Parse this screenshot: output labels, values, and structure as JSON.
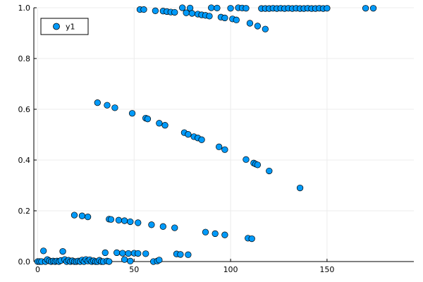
{
  "chart_data": {
    "type": "scatter",
    "title": "",
    "xlabel": "",
    "ylabel": "",
    "xlim": [
      -2,
      195
    ],
    "ylim": [
      0,
      1
    ],
    "xticks": [
      0,
      50,
      100,
      150
    ],
    "yticks": [
      0.0,
      0.2,
      0.4,
      0.6,
      0.8,
      1.0
    ],
    "xtick_labels": [
      "0",
      "50",
      "100",
      "150"
    ],
    "ytick_labels": [
      "0.0",
      "0.2",
      "0.4",
      "0.6",
      "0.8",
      "1.0"
    ],
    "grid": true,
    "legend": {
      "position": "top-left",
      "entries": [
        "y1"
      ]
    },
    "colors": {
      "marker": "#009af9",
      "marker_edge": "#000000",
      "grid": "#ececec",
      "axis": "#000000"
    },
    "series": [
      {
        "name": "y1",
        "points": [
          [
            0,
            0.0
          ],
          [
            1,
            0.0
          ],
          [
            2,
            0.0
          ],
          [
            3,
            0.042
          ],
          [
            4,
            0.0
          ],
          [
            5,
            0.008
          ],
          [
            6,
            0.003
          ],
          [
            7,
            0.0
          ],
          [
            8,
            0.002
          ],
          [
            9,
            0.0
          ],
          [
            10,
            0.002
          ],
          [
            11,
            0.0
          ],
          [
            12,
            0.004
          ],
          [
            13,
            0.04
          ],
          [
            14,
            0.008
          ],
          [
            15,
            0.0
          ],
          [
            16,
            0.005
          ],
          [
            17,
            0.0
          ],
          [
            18,
            0.003
          ],
          [
            19,
            0.0
          ],
          [
            20,
            0.0
          ],
          [
            21,
            0.002
          ],
          [
            22,
            0.0
          ],
          [
            23,
            0.006
          ],
          [
            24,
            0.0
          ],
          [
            25,
            0.008
          ],
          [
            26,
            0.002
          ],
          [
            27,
            0.007
          ],
          [
            28,
            0.0
          ],
          [
            29,
            0.003
          ],
          [
            30,
            0.0
          ],
          [
            31,
            0.0
          ],
          [
            32,
            0.005
          ],
          [
            33,
            0.0
          ],
          [
            34,
            0.0
          ],
          [
            35,
            0.035
          ],
          [
            36,
            0.002
          ],
          [
            37,
            0.0
          ],
          [
            41,
            0.035
          ],
          [
            44,
            0.033
          ],
          [
            45,
            0.008
          ],
          [
            47,
            0.032
          ],
          [
            48,
            0.002
          ],
          [
            50,
            0.033
          ],
          [
            52,
            0.032
          ],
          [
            56,
            0.031
          ],
          [
            60,
            0.0
          ],
          [
            62,
            0.002
          ],
          [
            63,
            0.006
          ],
          [
            72,
            0.03
          ],
          [
            74,
            0.028
          ],
          [
            78,
            0.027
          ],
          [
            19,
            0.183
          ],
          [
            23,
            0.18
          ],
          [
            26,
            0.176
          ],
          [
            37,
            0.167
          ],
          [
            38,
            0.166
          ],
          [
            42,
            0.163
          ],
          [
            45,
            0.161
          ],
          [
            48,
            0.157
          ],
          [
            52,
            0.153
          ],
          [
            59,
            0.145
          ],
          [
            65,
            0.138
          ],
          [
            71,
            0.133
          ],
          [
            87,
            0.116
          ],
          [
            92,
            0.11
          ],
          [
            97,
            0.105
          ],
          [
            109,
            0.092
          ],
          [
            111,
            0.09
          ],
          [
            31,
            0.626
          ],
          [
            36,
            0.616
          ],
          [
            40,
            0.606
          ],
          [
            49,
            0.584
          ],
          [
            56,
            0.565
          ],
          [
            57,
            0.562
          ],
          [
            63,
            0.545
          ],
          [
            66,
            0.537
          ],
          [
            76,
            0.508
          ],
          [
            78,
            0.501
          ],
          [
            81,
            0.492
          ],
          [
            83,
            0.487
          ],
          [
            85,
            0.48
          ],
          [
            94,
            0.452
          ],
          [
            97,
            0.441
          ],
          [
            108,
            0.402
          ],
          [
            112,
            0.388
          ],
          [
            113,
            0.384
          ],
          [
            114,
            0.381
          ],
          [
            120,
            0.357
          ],
          [
            136,
            0.29
          ],
          [
            53,
            0.993
          ],
          [
            55,
            0.993
          ],
          [
            61,
            0.988
          ],
          [
            65,
            0.987
          ],
          [
            67,
            0.985
          ],
          [
            69,
            0.983
          ],
          [
            71,
            0.982
          ],
          [
            75,
            1.0
          ],
          [
            77,
            0.98
          ],
          [
            79,
            0.999
          ],
          [
            80,
            0.978
          ],
          [
            83,
            0.975
          ],
          [
            85,
            0.972
          ],
          [
            87,
            0.97
          ],
          [
            89,
            0.967
          ],
          [
            90,
            1.0
          ],
          [
            93,
            0.999
          ],
          [
            95,
            0.963
          ],
          [
            97,
            0.96
          ],
          [
            100,
            0.998
          ],
          [
            101,
            0.956
          ],
          [
            103,
            0.952
          ],
          [
            104,
            1.0
          ],
          [
            106,
            0.999
          ],
          [
            108,
            0.998
          ],
          [
            110,
            0.939
          ],
          [
            114,
            0.928
          ],
          [
            118,
            0.916
          ],
          [
            116,
            0.997
          ],
          [
            118,
            0.997
          ],
          [
            120,
            0.997
          ],
          [
            122,
            0.998
          ],
          [
            124,
            0.997
          ],
          [
            126,
            0.998
          ],
          [
            128,
            0.997
          ],
          [
            130,
            0.998
          ],
          [
            132,
            0.997
          ],
          [
            134,
            0.998
          ],
          [
            136,
            0.997
          ],
          [
            138,
            0.997
          ],
          [
            140,
            0.998
          ],
          [
            142,
            0.997
          ],
          [
            144,
            0.997
          ],
          [
            146,
            0.998
          ],
          [
            148,
            0.997
          ],
          [
            150,
            0.998
          ],
          [
            170,
            0.998
          ],
          [
            174,
            0.998
          ]
        ]
      }
    ]
  }
}
